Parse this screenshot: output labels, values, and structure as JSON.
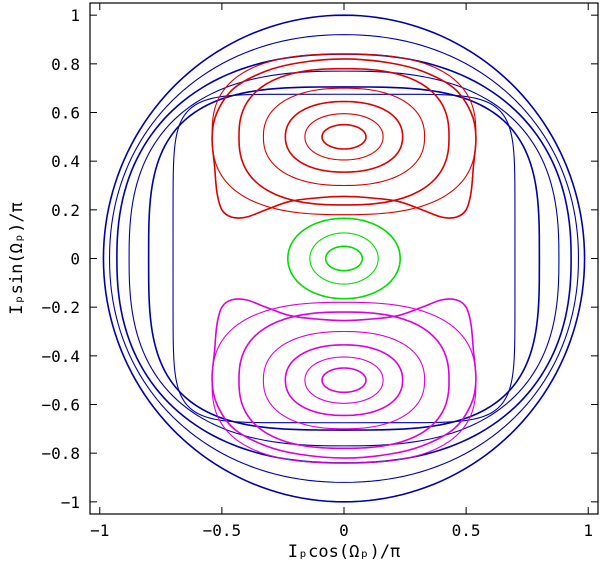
{
  "chart_data": {
    "type": "line",
    "title": "",
    "xlabel": "Iₚcos(Ωₚ)/π",
    "ylabel": "Iₚsin(Ωₚ)/π",
    "xlim": [
      -1.04,
      1.04
    ],
    "ylim": [
      -1.05,
      1.05
    ],
    "xticks": [
      {
        "value": -1,
        "label": "−1"
      },
      {
        "value": -0.5,
        "label": "−0.5"
      },
      {
        "value": 0,
        "label": "0"
      },
      {
        "value": 0.5,
        "label": "0.5"
      },
      {
        "value": 1,
        "label": "1"
      }
    ],
    "yticks": [
      {
        "value": -1,
        "label": "−1"
      },
      {
        "value": -0.8,
        "label": "−0.8"
      },
      {
        "value": -0.6,
        "label": "−0.6"
      },
      {
        "value": -0.4,
        "label": "−0.4"
      },
      {
        "value": -0.2,
        "label": "−0.2"
      },
      {
        "value": 0,
        "label": "0"
      },
      {
        "value": 0.2,
        "label": "0.2"
      },
      {
        "value": 0.4,
        "label": "0.4"
      },
      {
        "value": 0.6,
        "label": "0.6"
      },
      {
        "value": 0.8,
        "label": "0.8"
      },
      {
        "value": 1,
        "label": "1"
      }
    ],
    "grid": false,
    "legend": "none",
    "series": [
      {
        "color": "#0000aa",
        "kind": "outer",
        "curves": [
          {
            "a": 0.985,
            "b": 1.0,
            "cx": 0,
            "cy": 0,
            "n": 2
          },
          {
            "a": 0.96,
            "b": 0.92,
            "cx": 0,
            "cy": 0,
            "n": 2.1
          },
          {
            "a": 0.93,
            "b": 0.84,
            "cx": 0,
            "cy": 0,
            "n": 2.3
          },
          {
            "a": 0.88,
            "b": 0.77,
            "cx": 0,
            "cy": 0,
            "n": 2.6
          },
          {
            "a": 0.8,
            "b": 0.705,
            "cx": 0,
            "cy": 0,
            "n": 3.3
          },
          {
            "a": 0.7,
            "b": 0.675,
            "cx": 0,
            "cy": 0,
            "n": 7.0
          }
        ]
      },
      {
        "color": "#dd0000",
        "kind": "upper",
        "curves": [
          {
            "a": 0.09,
            "b": 0.05,
            "cx": 0,
            "cy": 0.5,
            "n": 2
          },
          {
            "a": 0.16,
            "b": 0.095,
            "cx": 0,
            "cy": 0.5,
            "n": 2.1
          },
          {
            "a": 0.24,
            "b": 0.145,
            "cx": 0,
            "cy": 0.5,
            "n": 2.2
          },
          {
            "a": 0.33,
            "b": 0.2,
            "cx": 0,
            "cy": 0.5,
            "n": 2.3
          },
          {
            "a": 0.43,
            "b": 0.28,
            "cx": 0,
            "cy": 0.5,
            "n": 2.5
          },
          {
            "a": 0.54,
            "b": 0.33,
            "cx": 0,
            "cy": 0.51,
            "n": 2.6
          },
          {
            "pts": [
              [
                0.0,
                0.82
              ],
              [
                0.18,
                0.805
              ],
              [
                0.32,
                0.77
              ],
              [
                0.45,
                0.7
              ],
              [
                0.52,
                0.6
              ],
              [
                0.54,
                0.5
              ],
              [
                0.53,
                0.38
              ],
              [
                0.52,
                0.27
              ],
              [
                0.5,
                0.2
              ],
              [
                0.46,
                0.17
              ],
              [
                0.4,
                0.17
              ],
              [
                0.32,
                0.2
              ],
              [
                0.22,
                0.235
              ],
              [
                0.1,
                0.25
              ],
              [
                0.0,
                0.255
              ],
              [
                -0.1,
                0.25
              ],
              [
                -0.22,
                0.235
              ],
              [
                -0.32,
                0.2
              ],
              [
                -0.4,
                0.17
              ],
              [
                -0.46,
                0.17
              ],
              [
                -0.5,
                0.2
              ],
              [
                -0.52,
                0.27
              ],
              [
                -0.53,
                0.38
              ],
              [
                -0.54,
                0.5
              ],
              [
                -0.52,
                0.6
              ],
              [
                -0.45,
                0.7
              ],
              [
                -0.32,
                0.77
              ],
              [
                -0.18,
                0.805
              ]
            ]
          }
        ]
      },
      {
        "color": "#00dd00",
        "kind": "center",
        "curves": [
          {
            "a": 0.075,
            "b": 0.05,
            "cx": 0,
            "cy": 0,
            "n": 2
          },
          {
            "a": 0.14,
            "b": 0.105,
            "cx": 0,
            "cy": 0,
            "n": 2
          },
          {
            "a": 0.23,
            "b": 0.165,
            "cx": 0,
            "cy": 0,
            "n": 2.05
          }
        ]
      },
      {
        "color": "#dd00dd",
        "kind": "lower",
        "curves": [
          {
            "a": 0.09,
            "b": 0.05,
            "cx": 0,
            "cy": -0.5,
            "n": 2
          },
          {
            "a": 0.16,
            "b": 0.095,
            "cx": 0,
            "cy": -0.5,
            "n": 2.1
          },
          {
            "a": 0.24,
            "b": 0.145,
            "cx": 0,
            "cy": -0.5,
            "n": 2.2
          },
          {
            "a": 0.33,
            "b": 0.2,
            "cx": 0,
            "cy": -0.5,
            "n": 2.3
          },
          {
            "a": 0.43,
            "b": 0.28,
            "cx": 0,
            "cy": -0.5,
            "n": 2.5
          },
          {
            "a": 0.54,
            "b": 0.33,
            "cx": 0,
            "cy": -0.51,
            "n": 2.6
          },
          {
            "pts": [
              [
                0.0,
                -0.82
              ],
              [
                0.18,
                -0.805
              ],
              [
                0.32,
                -0.77
              ],
              [
                0.45,
                -0.7
              ],
              [
                0.52,
                -0.6
              ],
              [
                0.54,
                -0.5
              ],
              [
                0.53,
                -0.38
              ],
              [
                0.52,
                -0.27
              ],
              [
                0.5,
                -0.2
              ],
              [
                0.46,
                -0.17
              ],
              [
                0.4,
                -0.17
              ],
              [
                0.32,
                -0.2
              ],
              [
                0.22,
                -0.235
              ],
              [
                0.1,
                -0.25
              ],
              [
                0.0,
                -0.255
              ],
              [
                -0.1,
                -0.25
              ],
              [
                -0.22,
                -0.235
              ],
              [
                -0.32,
                -0.2
              ],
              [
                -0.4,
                -0.17
              ],
              [
                -0.46,
                -0.17
              ],
              [
                -0.5,
                -0.2
              ],
              [
                -0.52,
                -0.27
              ],
              [
                -0.53,
                -0.38
              ],
              [
                -0.54,
                -0.5
              ],
              [
                -0.52,
                -0.6
              ],
              [
                -0.45,
                -0.7
              ],
              [
                -0.32,
                -0.77
              ],
              [
                -0.18,
                -0.805
              ]
            ]
          }
        ]
      }
    ]
  }
}
